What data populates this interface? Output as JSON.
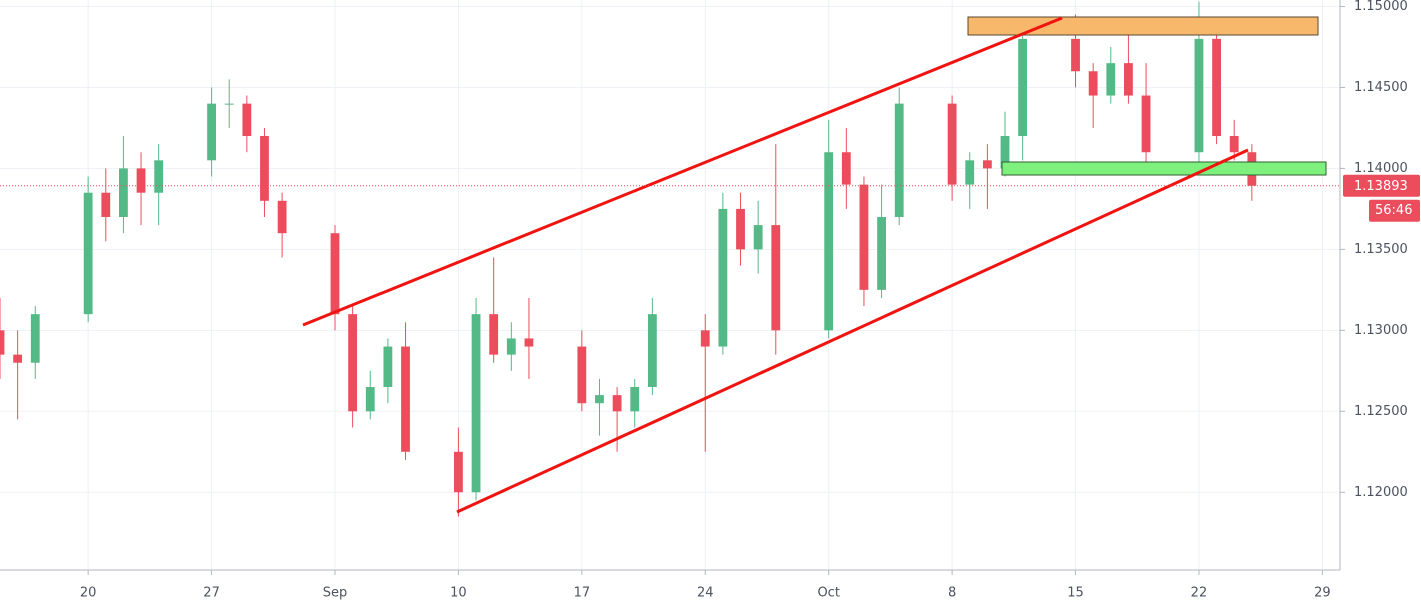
{
  "chart_data": {
    "type": "candlestick",
    "x": [
      "08-15",
      "08-16",
      "08-17",
      "08-20",
      "08-21",
      "08-22",
      "08-23",
      "08-24",
      "08-27",
      "08-28",
      "08-29",
      "08-30",
      "08-31",
      "09-03",
      "09-04",
      "09-05",
      "09-06",
      "09-07",
      "09-10",
      "09-11",
      "09-12",
      "09-13",
      "09-14",
      "09-17",
      "09-18",
      "09-19",
      "09-20",
      "09-21",
      "09-24",
      "09-25",
      "09-26",
      "09-27",
      "09-28",
      "10-01",
      "10-02",
      "10-03",
      "10-04",
      "10-05",
      "10-08",
      "10-09",
      "10-10",
      "10-11",
      "10-12",
      "10-15",
      "10-16",
      "10-17",
      "10-18",
      "10-19",
      "10-22",
      "10-23",
      "10-24",
      "10-25"
    ],
    "open": [
      1.13,
      1.1285,
      1.128,
      1.131,
      1.1385,
      1.137,
      1.14,
      1.1385,
      1.1405,
      1.144,
      1.144,
      1.142,
      1.138,
      1.136,
      1.131,
      1.125,
      1.1265,
      1.129,
      1.1225,
      1.12,
      1.131,
      1.1285,
      1.1295,
      1.129,
      1.1255,
      1.126,
      1.125,
      1.1265,
      1.13,
      1.129,
      1.1375,
      1.135,
      1.1365,
      1.13,
      1.141,
      1.139,
      1.1325,
      1.137,
      1.144,
      1.139,
      1.1405,
      1.14,
      1.142,
      1.148,
      1.146,
      1.1445,
      1.1465,
      1.1445,
      1.141,
      1.148,
      1.142,
      1.141
    ],
    "high": [
      1.132,
      1.13,
      1.1315,
      1.1395,
      1.14,
      1.142,
      1.141,
      1.1415,
      1.145,
      1.1455,
      1.1445,
      1.1425,
      1.1385,
      1.1365,
      1.1315,
      1.1275,
      1.1295,
      1.1305,
      1.124,
      1.132,
      1.1345,
      1.1305,
      1.132,
      1.13,
      1.127,
      1.1265,
      1.127,
      1.132,
      1.131,
      1.1385,
      1.1385,
      1.138,
      1.1415,
      1.143,
      1.1425,
      1.1395,
      1.139,
      1.145,
      1.1445,
      1.141,
      1.1415,
      1.1435,
      1.149,
      1.1495,
      1.1465,
      1.1475,
      1.1485,
      1.1465,
      1.1503,
      1.1485,
      1.143,
      1.1415
    ],
    "low": [
      1.127,
      1.1245,
      1.127,
      1.1305,
      1.1355,
      1.136,
      1.1365,
      1.1365,
      1.1395,
      1.1425,
      1.141,
      1.137,
      1.1345,
      1.13,
      1.124,
      1.1245,
      1.1255,
      1.122,
      1.1185,
      1.1195,
      1.128,
      1.1275,
      1.127,
      1.125,
      1.1235,
      1.1225,
      1.124,
      1.126,
      1.1225,
      1.1285,
      1.134,
      1.1335,
      1.1285,
      1.1295,
      1.1375,
      1.1315,
      1.132,
      1.1365,
      1.138,
      1.1375,
      1.1375,
      1.1395,
      1.1405,
      1.145,
      1.1425,
      1.144,
      1.144,
      1.14,
      1.14,
      1.1415,
      1.1405,
      1.138
    ],
    "close": [
      1.1285,
      1.128,
      1.131,
      1.1385,
      1.137,
      1.14,
      1.1385,
      1.1405,
      1.144,
      1.144,
      1.142,
      1.138,
      1.136,
      1.131,
      1.125,
      1.1265,
      1.129,
      1.1225,
      1.12,
      1.131,
      1.1285,
      1.1295,
      1.129,
      1.1255,
      1.126,
      1.125,
      1.1265,
      1.131,
      1.129,
      1.1375,
      1.135,
      1.1365,
      1.13,
      1.141,
      1.139,
      1.1325,
      1.137,
      1.144,
      1.139,
      1.1405,
      1.14,
      1.142,
      1.148,
      1.146,
      1.1445,
      1.1465,
      1.1445,
      1.141,
      1.148,
      1.142,
      1.141,
      1.13893
    ],
    "up_color": "#53b987",
    "down_color": "#eb4d5c",
    "xlim": [
      "08-15",
      "10-30"
    ],
    "xticks": [
      {
        "value": "08-20",
        "label": "20"
      },
      {
        "value": "08-27",
        "label": "27"
      },
      {
        "value": "09-03",
        "label": "Sep"
      },
      {
        "value": "09-10",
        "label": "10"
      },
      {
        "value": "09-17",
        "label": "17"
      },
      {
        "value": "09-24",
        "label": "24"
      },
      {
        "value": "10-01",
        "label": "Oct"
      },
      {
        "value": "10-08",
        "label": "8"
      },
      {
        "value": "10-15",
        "label": "15"
      },
      {
        "value": "10-22",
        "label": "22"
      },
      {
        "value": "10-29",
        "label": "29"
      }
    ],
    "ylim": [
      1.1152,
      1.1504
    ],
    "yticks": [
      {
        "value": 1.12,
        "label": "1.12000"
      },
      {
        "value": 1.125,
        "label": "1.12500"
      },
      {
        "value": 1.13,
        "label": "1.13000"
      },
      {
        "value": 1.135,
        "label": "1.13500"
      },
      {
        "value": 1.14,
        "label": "1.14000"
      },
      {
        "value": 1.145,
        "label": "1.14500"
      },
      {
        "value": 1.15,
        "label": "1.15000"
      }
    ],
    "grid": true,
    "last_price": 1.13893,
    "countdown": "56:46"
  }
}
